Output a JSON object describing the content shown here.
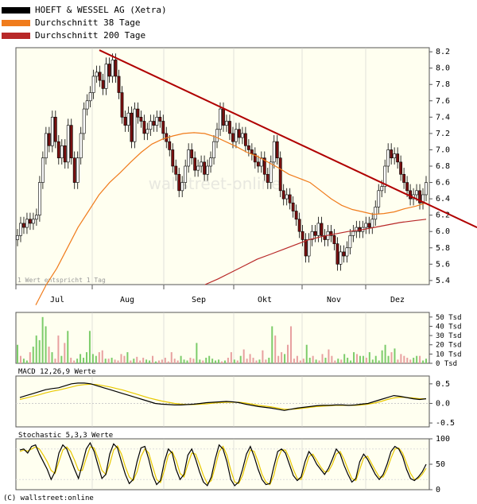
{
  "legend": [
    {
      "label": "HOEFT & WESSEL AG (Xetra)",
      "color": "#000000"
    },
    {
      "label": "Durchschnitt 38 Tage",
      "color": "#f07c1c"
    },
    {
      "label": "Durchschnitt 200 Tage",
      "color": "#b82828"
    }
  ],
  "footnote": "1 Wert entspricht 1 Tag",
  "watermark": "wallstreet-online",
  "copyright": "(C) wallstreet:online",
  "colors": {
    "background": "#fffff0",
    "up": "#ffffff",
    "down": "#7a1010",
    "volume_up": "#7ccc6a",
    "volume_down": "#e8a0a0",
    "trend": "#b00000",
    "ma38": "#f07c1c",
    "ma200": "#b82828",
    "macd": "#000000",
    "signal": "#e8c800"
  },
  "chart_data": [
    {
      "type": "candlestick",
      "name": "price",
      "months": [
        "Jul",
        "Aug",
        "Sep",
        "Okt",
        "Nov",
        "Dez"
      ],
      "yticks": [
        "8.2",
        "8.0",
        "7.8",
        "7.6",
        "7.4",
        "7.2",
        "7.0",
        "6.8",
        "6.6",
        "6.4",
        "6.2",
        "6.0",
        "5.8",
        "5.6",
        "5.4"
      ],
      "ylim": [
        5.35,
        8.25
      ],
      "closes": [
        5.95,
        6.1,
        6.05,
        6.15,
        6.1,
        6.15,
        6.2,
        6.6,
        6.9,
        7.2,
        7.05,
        7.4,
        7.1,
        6.9,
        7.05,
        6.85,
        7.3,
        6.9,
        6.6,
        6.9,
        7.2,
        7.5,
        7.6,
        7.7,
        7.9,
        7.95,
        7.85,
        7.75,
        8.05,
        7.9,
        8.1,
        7.9,
        7.7,
        7.4,
        7.3,
        7.45,
        7.1,
        7.5,
        7.4,
        7.35,
        7.2,
        7.25,
        7.35,
        7.3,
        7.4,
        7.35,
        7.2,
        7.1,
        7.0,
        6.8,
        6.7,
        6.5,
        6.6,
        6.8,
        7.0,
        6.9,
        6.75,
        6.8,
        6.85,
        6.7,
        6.8,
        6.9,
        7.1,
        7.25,
        7.5,
        7.3,
        7.35,
        7.2,
        7.1,
        7.25,
        7.15,
        7.2,
        7.05,
        7.0,
        6.95,
        6.85,
        6.8,
        6.9,
        6.7,
        6.6,
        6.85,
        7.1,
        6.9,
        6.5,
        6.4,
        6.45,
        6.35,
        6.25,
        6.15,
        6.0,
        5.9,
        5.7,
        5.9,
        6.0,
        5.95,
        6.1,
        5.95,
        5.9,
        6.0,
        5.95,
        5.85,
        5.6,
        5.75,
        5.7,
        5.8,
        5.95,
        6.0,
        6.05,
        6.0,
        6.05,
        6.1,
        6.05,
        6.15,
        6.3,
        6.5,
        6.55,
        6.8,
        7.0,
        6.9,
        6.95,
        6.85,
        6.7,
        6.6,
        6.5,
        6.4,
        6.45,
        6.5,
        6.35,
        6.45,
        6.6
      ],
      "ma38": [
        5.1,
        5.35,
        5.55,
        5.8,
        6.05,
        6.25,
        6.45,
        6.6,
        6.72,
        6.85,
        6.97,
        7.07,
        7.13,
        7.17,
        7.2,
        7.21,
        7.2,
        7.16,
        7.1,
        7.04,
        6.97,
        6.92,
        6.85,
        6.78,
        6.7,
        6.65,
        6.6,
        6.5,
        6.4,
        6.32,
        6.27,
        6.24,
        6.21,
        6.22,
        6.24,
        6.28,
        6.31,
        6.35
      ],
      "ma200": [
        5.35,
        5.42,
        5.5,
        5.58,
        5.66,
        5.72,
        5.78,
        5.84,
        5.9,
        5.94,
        5.97,
        6.0,
        6.02,
        6.05,
        6.08,
        6.11,
        6.13,
        6.15
      ],
      "trendline": [
        [
          8.22,
          "start"
        ],
        [
          6.05,
          "end"
        ]
      ]
    },
    {
      "type": "bar",
      "name": "volume",
      "yticks": [
        "50 Tsd",
        "40 Tsd",
        "30 Tsd",
        "20 Tsd",
        "10 Tsd",
        "0 Tsd"
      ],
      "ylim": [
        0,
        55
      ],
      "values": [
        20,
        8,
        5,
        3,
        12,
        18,
        30,
        25,
        50,
        40,
        18,
        12,
        5,
        30,
        8,
        22,
        35,
        6,
        3,
        5,
        10,
        6,
        12,
        35,
        10,
        8,
        12,
        14,
        5,
        5,
        6,
        4,
        3,
        10,
        8,
        12,
        3,
        5,
        7,
        3,
        6,
        4,
        3,
        8,
        2,
        3,
        4,
        6,
        2,
        12,
        5,
        3,
        8,
        4,
        3,
        6,
        5,
        22,
        4,
        3,
        6,
        8,
        5,
        3,
        4,
        2,
        3,
        6,
        12,
        4,
        3,
        8,
        15,
        5,
        10,
        6,
        3,
        4,
        14,
        4,
        6,
        40,
        30,
        8,
        12,
        10,
        20,
        40,
        5,
        8,
        3,
        5,
        20,
        6,
        8,
        4,
        3,
        10,
        6,
        15,
        8,
        3,
        5,
        4,
        10,
        6,
        3,
        12,
        10,
        8,
        8,
        6,
        12,
        4,
        8,
        3,
        14,
        20,
        8,
        12,
        16,
        4,
        10,
        8,
        6,
        4,
        6,
        8,
        8,
        3,
        5
      ],
      "up": [
        1,
        0,
        1,
        1,
        0,
        1,
        1,
        1,
        1,
        1,
        0,
        1,
        0,
        0,
        1,
        0,
        1,
        0,
        0,
        1,
        1,
        1,
        1,
        1,
        1,
        1,
        0,
        0,
        1,
        0,
        1,
        0,
        0,
        0,
        0,
        1,
        0,
        1,
        0,
        0,
        0,
        1,
        1,
        0,
        1,
        0,
        0,
        0,
        0,
        0,
        0,
        0,
        1,
        1,
        1,
        0,
        0,
        1,
        1,
        0,
        1,
        1,
        1,
        1,
        1,
        0,
        1,
        0,
        0,
        1,
        0,
        1,
        0,
        0,
        0,
        0,
        0,
        1,
        0,
        0,
        1,
        1,
        0,
        0,
        0,
        1,
        0,
        0,
        0,
        0,
        0,
        0,
        1,
        1,
        0,
        1,
        0,
        0,
        1,
        0,
        0,
        0,
        1,
        0,
        1,
        1,
        1,
        1,
        0,
        1,
        1,
        0,
        1,
        1,
        1,
        1,
        1,
        1,
        1,
        0,
        1,
        0,
        0,
        0,
        0,
        0,
        1,
        1,
        0,
        1,
        1
      ]
    },
    {
      "type": "line",
      "name": "macd",
      "title": "MACD 12,26,9 Werte",
      "yticks": [
        "0.5",
        "0.0",
        "-0.5"
      ],
      "ylim": [
        -0.6,
        0.7
      ],
      "macd": [
        0.15,
        0.2,
        0.25,
        0.3,
        0.35,
        0.38,
        0.4,
        0.45,
        0.5,
        0.52,
        0.52,
        0.5,
        0.45,
        0.4,
        0.35,
        0.3,
        0.25,
        0.2,
        0.15,
        0.1,
        0.05,
        0.0,
        -0.02,
        -0.03,
        -0.04,
        -0.04,
        -0.03,
        -0.02,
        0.0,
        0.02,
        0.03,
        0.04,
        0.05,
        0.04,
        0.02,
        -0.02,
        -0.05,
        -0.08,
        -0.1,
        -0.12,
        -0.15,
        -0.18,
        -0.15,
        -0.12,
        -0.1,
        -0.08,
        -0.06,
        -0.05,
        -0.05,
        -0.04,
        -0.04,
        -0.05,
        -0.04,
        -0.02,
        0.0,
        0.05,
        0.1,
        0.15,
        0.2,
        0.18,
        0.15,
        0.12,
        0.1,
        0.12
      ],
      "signal": [
        0.1,
        0.14,
        0.18,
        0.22,
        0.27,
        0.31,
        0.34,
        0.38,
        0.42,
        0.46,
        0.48,
        0.49,
        0.48,
        0.45,
        0.42,
        0.38,
        0.34,
        0.29,
        0.24,
        0.19,
        0.14,
        0.1,
        0.06,
        0.03,
        0.0,
        -0.02,
        -0.03,
        -0.03,
        -0.02,
        -0.01,
        0.01,
        0.02,
        0.03,
        0.03,
        0.03,
        0.01,
        -0.02,
        -0.05,
        -0.07,
        -0.09,
        -0.12,
        -0.15,
        -0.15,
        -0.14,
        -0.12,
        -0.1,
        -0.08,
        -0.07,
        -0.06,
        -0.05,
        -0.05,
        -0.05,
        -0.05,
        -0.04,
        -0.02,
        0.01,
        0.05,
        0.1,
        0.14,
        0.16,
        0.15,
        0.14,
        0.12,
        0.12
      ]
    },
    {
      "type": "line",
      "name": "stochastic",
      "title": "Stochastic 5,3,3 Werte",
      "yticks": [
        "100",
        "50",
        "0"
      ],
      "ylim": [
        0,
        100
      ],
      "k": [
        78,
        80,
        72,
        85,
        88,
        70,
        55,
        40,
        20,
        35,
        72,
        88,
        80,
        60,
        40,
        22,
        50,
        80,
        92,
        75,
        48,
        22,
        30,
        70,
        90,
        82,
        55,
        30,
        12,
        20,
        55,
        82,
        85,
        60,
        28,
        10,
        18,
        55,
        80,
        72,
        40,
        20,
        30,
        68,
        80,
        60,
        35,
        15,
        8,
        25,
        60,
        88,
        80,
        55,
        20,
        8,
        15,
        40,
        70,
        85,
        65,
        40,
        20,
        10,
        12,
        45,
        75,
        80,
        72,
        50,
        28,
        18,
        25,
        55,
        75,
        65,
        50,
        40,
        30,
        42,
        60,
        80,
        70,
        48,
        30,
        15,
        22,
        55,
        70,
        60,
        45,
        30,
        20,
        30,
        50,
        75,
        85,
        80,
        65,
        40,
        22,
        18,
        25,
        35,
        50
      ],
      "d": [
        75,
        78,
        76,
        80,
        84,
        80,
        68,
        55,
        38,
        32,
        55,
        78,
        84,
        75,
        58,
        38,
        38,
        62,
        84,
        82,
        62,
        38,
        30,
        50,
        78,
        86,
        70,
        45,
        25,
        18,
        35,
        65,
        80,
        72,
        45,
        20,
        14,
        38,
        68,
        75,
        58,
        32,
        25,
        50,
        72,
        70,
        50,
        28,
        12,
        18,
        45,
        75,
        85,
        68,
        38,
        15,
        12,
        28,
        55,
        78,
        75,
        55,
        30,
        15,
        10,
        28,
        60,
        78,
        78,
        62,
        40,
        22,
        20,
        40,
        65,
        70,
        58,
        45,
        35,
        36,
        50,
        70,
        75,
        60,
        40,
        22,
        18,
        40,
        62,
        66,
        52,
        38,
        25,
        25,
        40,
        62,
        80,
        82,
        72,
        52,
        32,
        20,
        22,
        30,
        42
      ]
    }
  ]
}
